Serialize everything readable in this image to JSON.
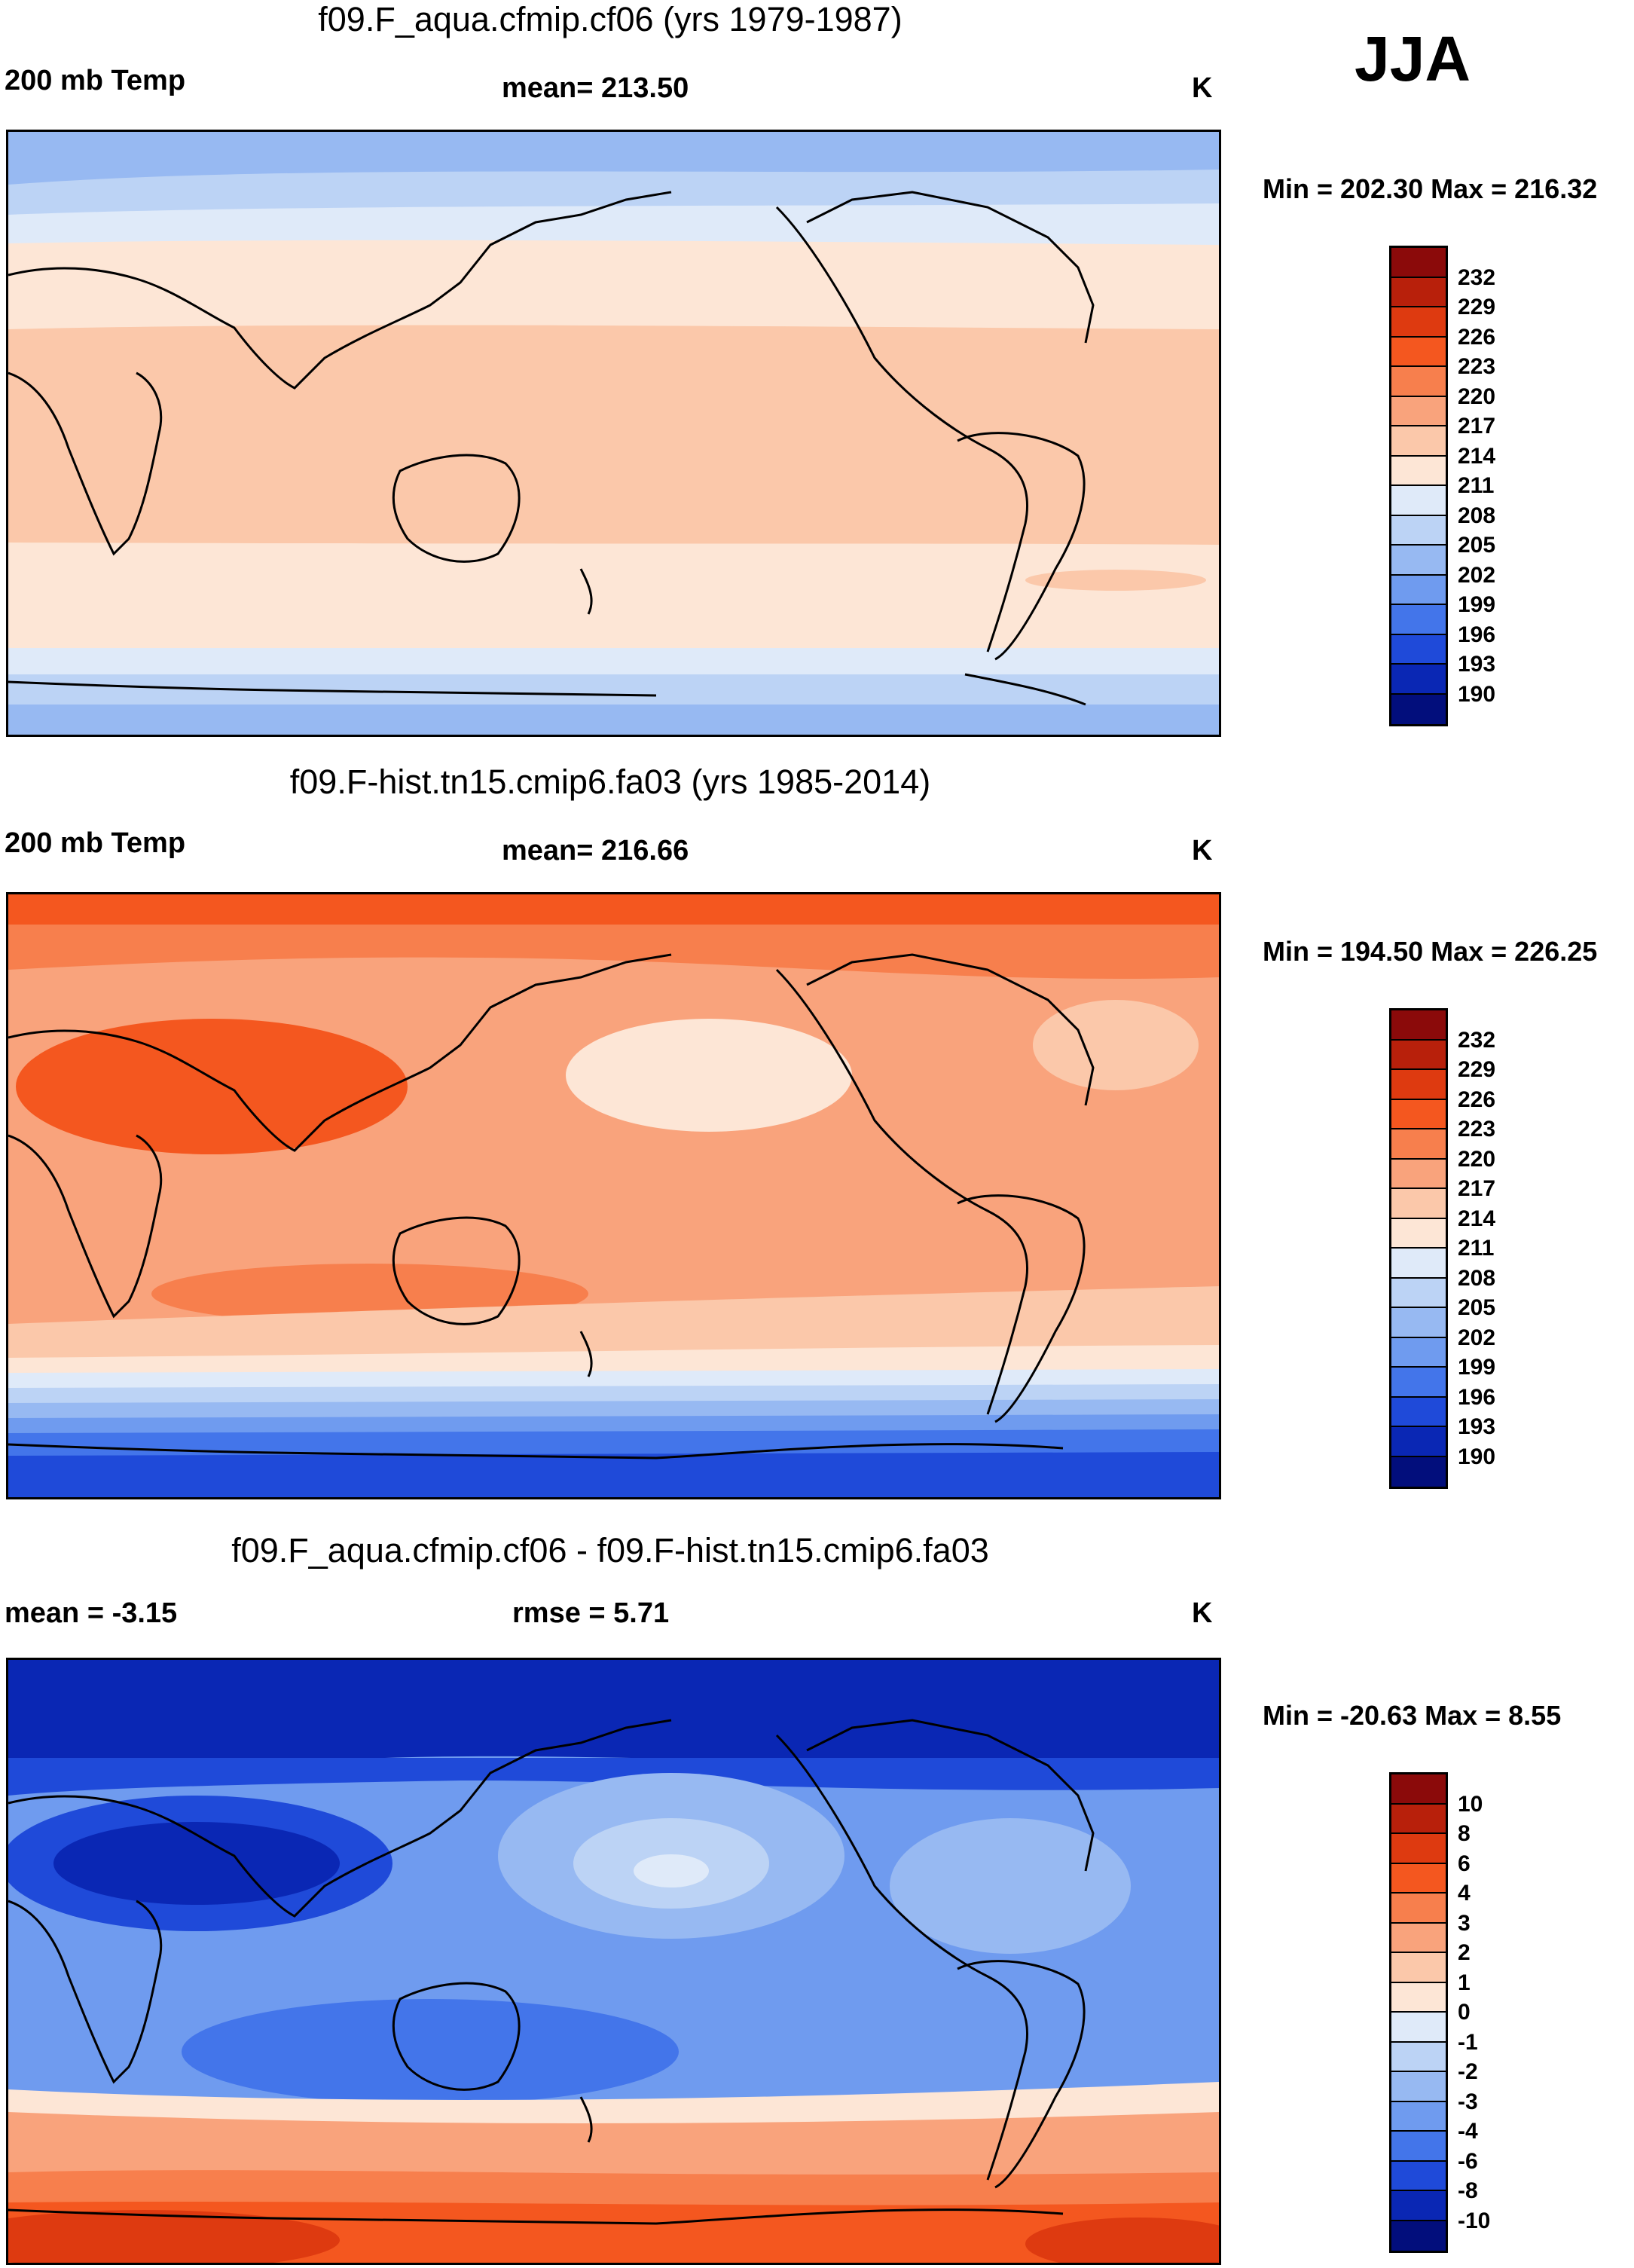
{
  "season": "JJA",
  "panels": [
    {
      "title": "f09.F_aqua.cfmip.cf06 (yrs 1979-1987)",
      "left_label": "200 mb Temp",
      "center_label": "mean= 213.50",
      "units": "K",
      "minmax": "Min = 202.30 Max = 216.32",
      "map_description": "Zonally symmetric temperature bands: cold blues near poles, warm light-salmon in tropics"
    },
    {
      "title": "f09.F-hist.tn15.cmip6.fa03 (yrs 1985-2014)",
      "left_label": "200 mb Temp",
      "center_label": "mean= 216.66",
      "units": "K",
      "minmax": "Min = 194.50 Max = 226.25"
    },
    {
      "title": "f09.F_aqua.cfmip.cf06 - f09.F-hist.tn15.cmip6.fa03",
      "left_label": "mean =  -3.15",
      "center_label": "rmse =   5.71",
      "units": "K",
      "minmax": "Min = -20.63 Max =   8.55"
    }
  ],
  "colorbar_abs": {
    "labels": [
      "232",
      "229",
      "226",
      "223",
      "220",
      "217",
      "214",
      "211",
      "208",
      "205",
      "202",
      "199",
      "196",
      "193",
      "190"
    ],
    "colors": [
      "#8b0a0a",
      "#b8200b",
      "#de3a10",
      "#f4571f",
      "#f77f4d",
      "#f9a37c",
      "#fbc8aa",
      "#fde6d6",
      "#dfeaf9",
      "#bcd3f5",
      "#97b9f2",
      "#6f9bef",
      "#4375ea",
      "#1f4ad9",
      "#0a27b4",
      "#020e7c"
    ]
  },
  "colorbar_diff": {
    "labels": [
      "10",
      "8",
      "6",
      "4",
      "3",
      "2",
      "1",
      "0",
      "-1",
      "-2",
      "-3",
      "-4",
      "-6",
      "-8",
      "-10"
    ],
    "colors": [
      "#8b0a0a",
      "#b8200b",
      "#de3a10",
      "#f4571f",
      "#f77f4d",
      "#f9a37c",
      "#fbc8aa",
      "#fde6d6",
      "#dfeaf9",
      "#bcd3f5",
      "#97b9f2",
      "#6f9bef",
      "#4375ea",
      "#1f4ad9",
      "#0a27b4",
      "#020e7c"
    ]
  },
  "map_bands": {
    "panel1": [
      {
        "level": "202",
        "color": "#97b9f2"
      },
      {
        "level": "205",
        "color": "#bcd3f5"
      },
      {
        "level": "208",
        "color": "#dfeaf9"
      },
      {
        "level": "211",
        "color": "#fde6d6"
      },
      {
        "level": "214",
        "color": "#fbc8aa"
      },
      {
        "level": "211",
        "color": "#fde6d6"
      },
      {
        "level": "208",
        "color": "#dfeaf9"
      },
      {
        "level": "205",
        "color": "#bcd3f5"
      },
      {
        "level": "202",
        "color": "#97b9f2"
      }
    ],
    "panel2": [
      {
        "level": "220",
        "color": "#f77f4d"
      },
      {
        "level": "217",
        "color": "#f9a37c"
      },
      {
        "level": "214",
        "color": "#fbc8aa"
      },
      {
        "level": "211",
        "color": "#fde6d6"
      },
      {
        "level": "208",
        "color": "#dfeaf9"
      },
      {
        "level": "205",
        "color": "#bcd3f5"
      },
      {
        "level": "202",
        "color": "#97b9f2"
      },
      {
        "level": "199",
        "color": "#6f9bef"
      },
      {
        "level": "196",
        "color": "#4375ea"
      },
      {
        "level": "193",
        "color": "#1f4ad9"
      }
    ],
    "panel3": [
      {
        "level": "-10",
        "color": "#0a27b4"
      },
      {
        "level": "-6",
        "color": "#4375ea"
      },
      {
        "level": "-3",
        "color": "#97b9f2"
      },
      {
        "level": "-4",
        "color": "#6f9bef"
      },
      {
        "level": "0",
        "color": "#fde6d6"
      },
      {
        "level": "2",
        "color": "#f9a37c"
      },
      {
        "level": "4",
        "color": "#f4571f"
      },
      {
        "level": "6",
        "color": "#de3a10"
      }
    ]
  }
}
